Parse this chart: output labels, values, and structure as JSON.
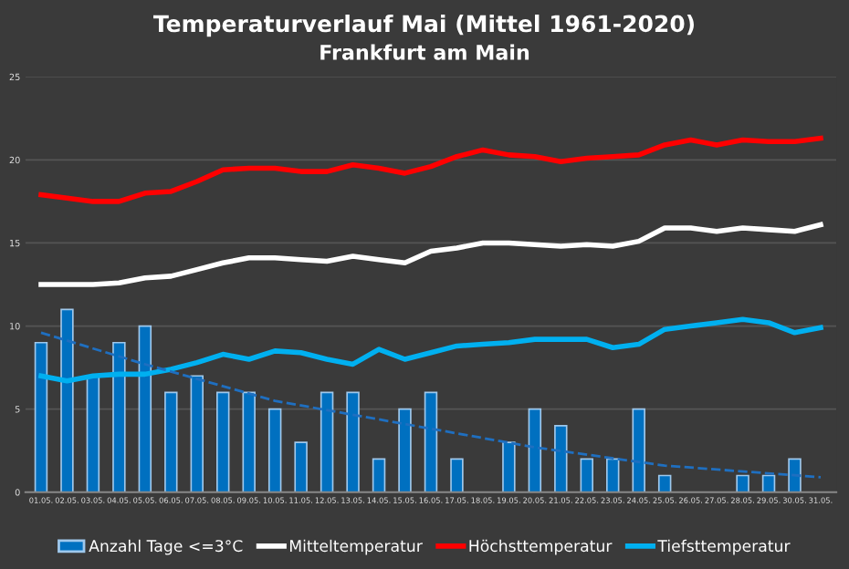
{
  "chart_data": {
    "type": "bar",
    "title": "Temperaturverlauf Mai (Mittel 1961-2020)",
    "subtitle": "Frankfurt am Main",
    "categories": [
      "01.05.",
      "02.05.",
      "03.05.",
      "04.05.",
      "05.05.",
      "06.05.",
      "07.05.",
      "08.05.",
      "09.05.",
      "10.05.",
      "11.05.",
      "12.05.",
      "13.05.",
      "14.05.",
      "15.05.",
      "16.05.",
      "17.05.",
      "18.05.",
      "19.05.",
      "20.05.",
      "21.05.",
      "22.05.",
      "23.05.",
      "24.05.",
      "25.05.",
      "26.05.",
      "27.05.",
      "28.05.",
      "29.05.",
      "30.05.",
      "31.05."
    ],
    "series": [
      {
        "name": "Anzahl Tage <=3°C",
        "color": "#0070c0",
        "values": [
          9,
          11,
          7,
          9,
          10,
          6,
          7,
          6,
          6,
          5,
          3,
          6,
          6,
          2,
          5,
          6,
          2,
          0,
          3,
          5,
          4,
          2,
          2,
          5,
          1,
          0,
          0,
          1,
          1,
          2,
          0
        ]
      },
      {
        "type": "line",
        "name": "Mitteltemperatur",
        "color": "#ffffff",
        "values": [
          12.5,
          12.5,
          12.5,
          12.6,
          12.9,
          13.0,
          13.4,
          13.8,
          14.1,
          14.1,
          14.0,
          13.9,
          14.2,
          14.0,
          13.8,
          14.5,
          14.7,
          15.0,
          15.0,
          14.9,
          14.8,
          14.9,
          14.8,
          15.1,
          15.9,
          15.9,
          15.7,
          15.9,
          15.8,
          15.7,
          16.1
        ]
      },
      {
        "type": "line",
        "name": "Höchsttemperatur",
        "color": "#ff0000",
        "values": [
          17.9,
          17.7,
          17.5,
          17.5,
          18.0,
          18.1,
          18.7,
          19.4,
          19.5,
          19.5,
          19.3,
          19.3,
          19.7,
          19.5,
          19.2,
          19.6,
          20.2,
          20.6,
          20.3,
          20.2,
          19.9,
          20.1,
          20.2,
          20.3,
          20.9,
          21.2,
          20.9,
          21.2,
          21.1,
          21.1,
          21.3
        ]
      },
      {
        "type": "line",
        "name": "Tiefsttemperatur",
        "color": "#00b0f0",
        "values": [
          7.0,
          6.7,
          7.0,
          7.1,
          7.1,
          7.4,
          7.8,
          8.3,
          8.0,
          8.5,
          8.4,
          8.0,
          7.7,
          8.6,
          8.0,
          8.4,
          8.8,
          8.9,
          9.0,
          9.2,
          9.2,
          9.2,
          8.7,
          8.9,
          9.8,
          10.0,
          10.2,
          10.4,
          10.2,
          9.6,
          9.9
        ]
      },
      {
        "type": "line",
        "color": "#1f6fc0",
        "line_style": "dashed",
        "x": [
          "01.05.",
          "05.05.",
          "10.05.",
          "15.05.",
          "20.05.",
          "25.05.",
          "31.05."
        ],
        "values": [
          9.6,
          7.7,
          5.5,
          4.1,
          2.7,
          1.6,
          0.9
        ]
      }
    ],
    "ylim": [
      0,
      25
    ],
    "yticks": [
      0,
      5,
      10,
      15,
      20,
      25
    ],
    "grid": "y",
    "legend": "bottom"
  }
}
